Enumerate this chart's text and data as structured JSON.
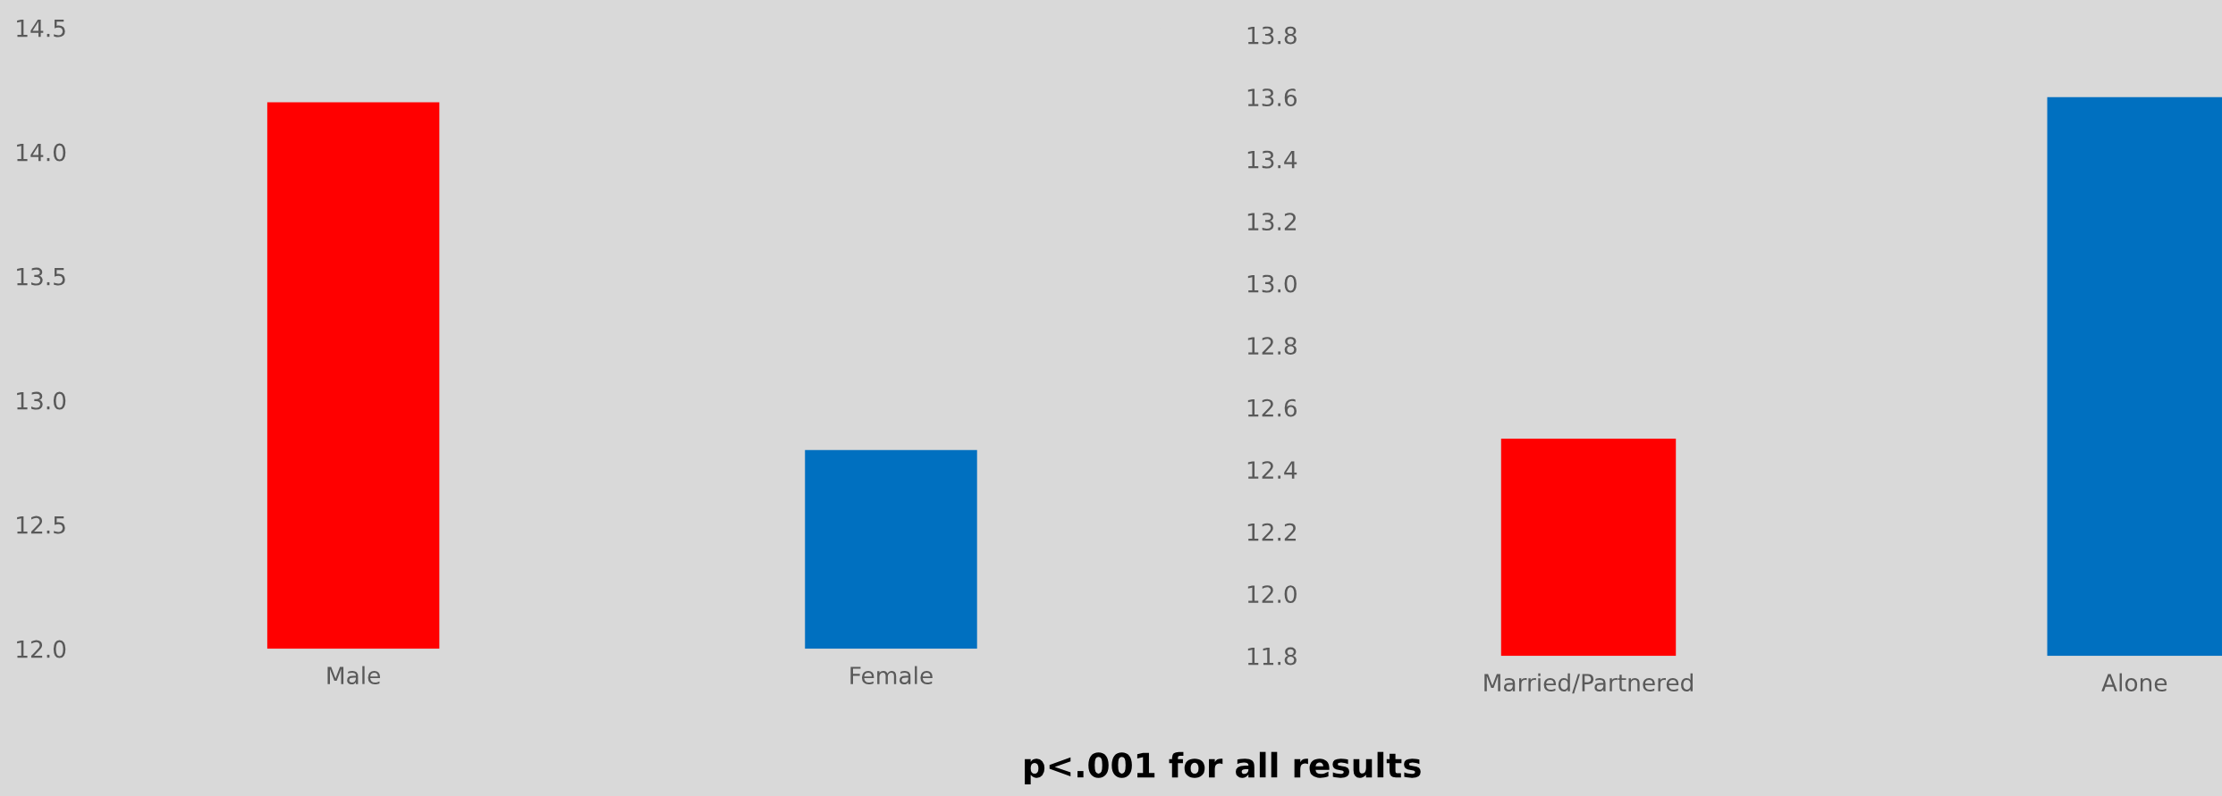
{
  "chart_data": [
    {
      "type": "bar",
      "categories": [
        "Male",
        "Female"
      ],
      "values": [
        14.2,
        12.8
      ],
      "colors": [
        "#ff0000",
        "#0070c0"
      ],
      "ylim": [
        12.0,
        14.5
      ],
      "yticks": [
        {
          "value": 12.0,
          "label": "12.0"
        },
        {
          "value": 12.5,
          "label": "12.5"
        },
        {
          "value": 13.0,
          "label": "13.0"
        },
        {
          "value": 13.5,
          "label": "13.5"
        },
        {
          "value": 14.0,
          "label": "14.0"
        },
        {
          "value": 14.5,
          "label": "14.5"
        }
      ],
      "grid": false,
      "annotations": [
        "p<.001 for all results"
      ]
    },
    {
      "type": "bar",
      "categories": [
        "Married/Partnered",
        "Alone"
      ],
      "values": [
        12.5,
        13.6
      ],
      "colors": [
        "#ff0000",
        "#0070c0"
      ],
      "ylim": [
        11.8,
        13.8
      ],
      "yticks": [
        {
          "value": 11.8,
          "label": "11.8"
        },
        {
          "value": 12.0,
          "label": "12.0"
        },
        {
          "value": 12.2,
          "label": "12.2"
        },
        {
          "value": 12.4,
          "label": "12.4"
        },
        {
          "value": 12.6,
          "label": "12.6"
        },
        {
          "value": 12.8,
          "label": "12.8"
        },
        {
          "value": 13.0,
          "label": "13.0"
        },
        {
          "value": 13.2,
          "label": "13.2"
        },
        {
          "value": 13.4,
          "label": "13.4"
        },
        {
          "value": 13.6,
          "label": "13.6"
        },
        {
          "value": 13.8,
          "label": "13.8"
        }
      ],
      "grid": false
    }
  ]
}
